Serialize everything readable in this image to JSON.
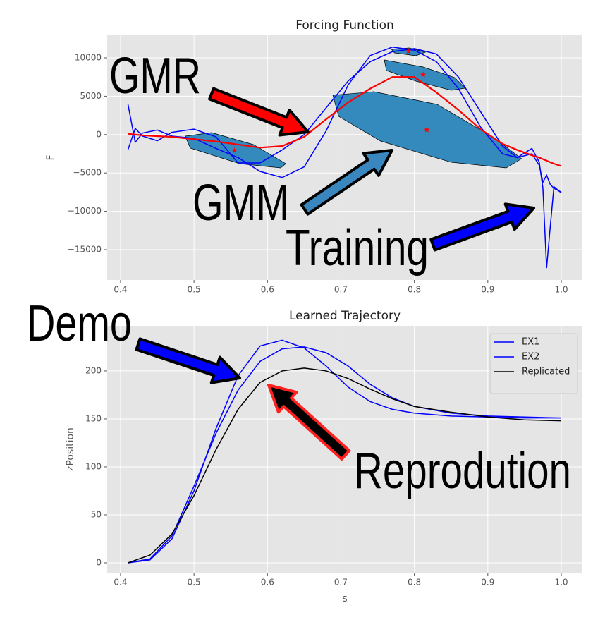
{
  "chart_data": [
    {
      "type": "line",
      "title": "Forcing Function",
      "ylabel": "F",
      "xlim": [
        0.3818,
        1.0288
      ],
      "ylim": [
        -18952,
        12941
      ],
      "xticks": [
        0.4,
        0.5,
        0.6,
        0.7,
        0.8,
        0.9,
        {
          "value": 1,
          "label": "1.0"
        }
      ],
      "yticks": [
        {
          "value": -15000,
          "label": "−15000"
        },
        {
          "value": -10000,
          "label": "−10000"
        },
        {
          "value": -5000,
          "label": "−5000"
        },
        0,
        5000,
        10000
      ],
      "grid": true,
      "x": [
        0.41,
        0.42,
        0.43,
        0.45,
        0.47,
        0.5,
        0.53,
        0.56,
        0.59,
        0.62,
        0.65,
        0.68,
        0.71,
        0.74,
        0.77,
        0.8,
        0.83,
        0.86,
        0.89,
        0.92,
        0.94,
        0.96,
        0.97,
        0.975,
        0.98,
        0.985,
        0.99,
        1.0
      ],
      "gmm_color": "#348abd",
      "mean_color": "#ff0000",
      "gmm": [
        {
          "mean_x": 0.555,
          "mean_y": -2100,
          "outline_x": [
            0.488,
            0.524,
            0.581,
            0.625,
            0.618,
            0.562,
            0.495
          ],
          "outline_y": [
            -202,
            257,
            -1305,
            -3787,
            -4338,
            -3787,
            -1765
          ]
        },
        {
          "mean_x": 0.817,
          "mean_y": 625,
          "outline_x": [
            0.689,
            0.745,
            0.831,
            0.908,
            0.946,
            0.925,
            0.85,
            0.754,
            0.697
          ],
          "outline_y": [
            5129,
            5588,
            3934,
            -386,
            -3143,
            -4338,
            -3603,
            -846,
            2371
          ]
        },
        {
          "mean_x": 0.812,
          "mean_y": 7794,
          "outline_x": [
            0.759,
            0.812,
            0.855,
            0.869,
            0.85,
            0.802,
            0.762
          ],
          "outline_y": [
            9724,
            8805,
            7426,
            6048,
            5772,
            6967,
            8346
          ]
        },
        {
          "mean_x": 0.792,
          "mean_y": 10827,
          "outline_x": [
            0.769,
            0.793,
            0.815,
            0.802,
            0.773
          ],
          "outline_y": [
            11103,
            11287,
            10735,
            10276,
            10643
          ]
        }
      ],
      "series": [
        {
          "color": "#0000ff",
          "values": [
            4000,
            -1000,
            200,
            600,
            -200,
            -500,
            -1800,
            -3000,
            -4800,
            -5600,
            -4200,
            500,
            6500,
            10300,
            11400,
            11000,
            9500,
            6000,
            1000,
            -2500,
            -3000,
            -2500,
            -4000,
            -6200,
            -5300,
            -6500,
            -7000,
            -7500
          ]
        },
        {
          "color": "#0000ff",
          "values": [
            -2000,
            800,
            -200,
            -800,
            300,
            700,
            -300,
            -3700,
            -3700,
            -2000,
            0,
            3500,
            7000,
            9500,
            10800,
            11200,
            10500,
            7500,
            3000,
            -1500,
            -3000,
            -1800,
            -3600,
            -7000,
            -17400,
            -12000,
            -6800,
            -7600
          ]
        },
        {
          "color": "#ff0000",
          "values": [
            100,
            0,
            -100,
            -200,
            -300,
            -600,
            -900,
            -1300,
            -1700,
            -1500,
            -300,
            2000,
            4200,
            6000,
            7500,
            7500,
            5500,
            3200,
            700,
            -1200,
            -2000,
            -2700,
            -3000,
            -3200,
            -3400,
            -3600,
            -3800,
            -4100
          ]
        }
      ],
      "annotations": [
        "GMR",
        "GMM",
        "Training"
      ]
    },
    {
      "type": "line",
      "title": "Learned Trajectory",
      "xlabel": "s",
      "ylabel": "zPosition",
      "xlim": [
        0.3818,
        1.0288
      ],
      "ylim": [
        -10.3,
        247
      ],
      "xticks": [
        0.4,
        0.5,
        0.6,
        0.7,
        0.8,
        0.9,
        {
          "value": 1,
          "label": "1.0"
        }
      ],
      "yticks": [
        0,
        50,
        100,
        150,
        200
      ],
      "grid": true,
      "legend": "upper right",
      "x": [
        0.41,
        0.44,
        0.47,
        0.5,
        0.53,
        0.56,
        0.59,
        0.62,
        0.65,
        0.68,
        0.71,
        0.74,
        0.77,
        0.8,
        0.85,
        0.9,
        0.95,
        1.0
      ],
      "series": [
        {
          "name": "EX1",
          "color": "#0000ff",
          "values": [
            0,
            3,
            25,
            75,
            140,
            195,
            226,
            232,
            224,
            205,
            183,
            168,
            160,
            156,
            153,
            152,
            151,
            151
          ]
        },
        {
          "name": "EX2",
          "color": "#0000ff",
          "values": [
            0,
            4,
            28,
            80,
            135,
            180,
            210,
            223,
            225,
            219,
            205,
            186,
            172,
            163,
            156,
            153,
            152,
            151
          ]
        },
        {
          "name": "Replicated",
          "color": "#000000",
          "values": [
            0,
            8,
            30,
            70,
            118,
            160,
            188,
            200,
            203,
            200,
            192,
            181,
            171,
            163,
            157,
            152,
            149,
            148
          ]
        }
      ],
      "annotations": [
        "Demo",
        "Reprodution"
      ]
    }
  ]
}
